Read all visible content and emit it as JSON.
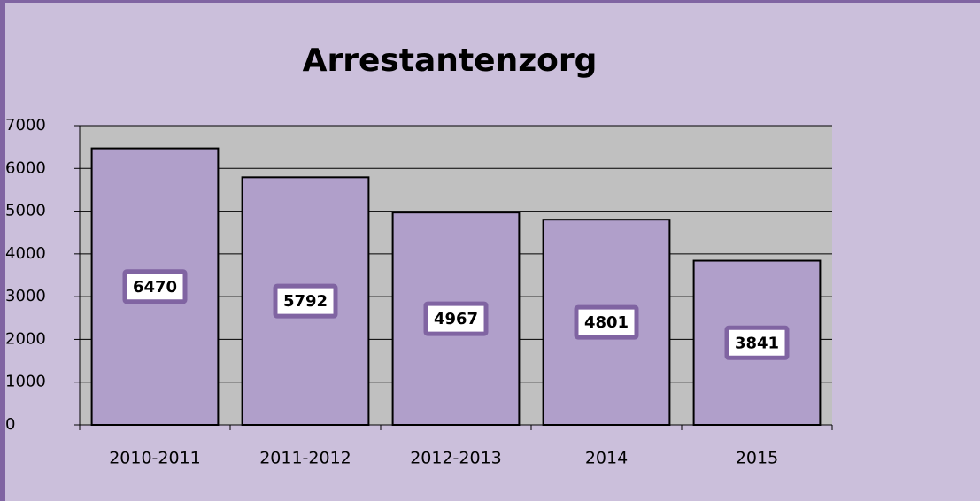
{
  "chart_data": {
    "type": "bar",
    "title": "Arrestantenzorg",
    "categories": [
      "2010-2011",
      "2011-2012",
      "2012-2013",
      "2014",
      "2015"
    ],
    "values": [
      6470,
      5792,
      4967,
      4801,
      3841
    ],
    "color": "#b09fca",
    "ylim": [
      0,
      7000
    ],
    "yticks": [
      0,
      1000,
      2000,
      3000,
      4000,
      5000,
      6000,
      7000
    ],
    "grid": true
  }
}
